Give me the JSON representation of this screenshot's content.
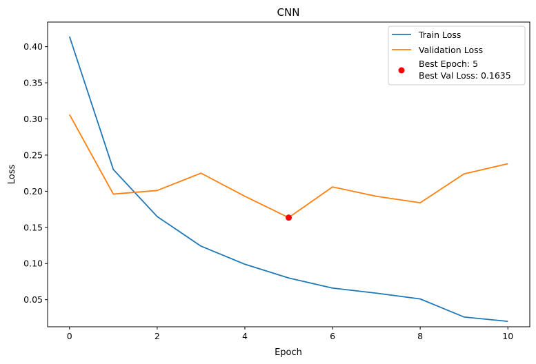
{
  "chart_data": {
    "type": "line",
    "title": "CNN",
    "xlabel": "Epoch",
    "ylabel": "Loss",
    "xlim": [
      -0.5,
      10.5
    ],
    "ylim": [
      0.0125,
      0.434
    ],
    "xticks": [
      0,
      2,
      4,
      6,
      8,
      10
    ],
    "yticks": [
      0.05,
      0.1,
      0.15,
      0.2,
      0.25,
      0.3,
      0.35,
      0.4
    ],
    "ytick_labels": [
      "0.05",
      "0.10",
      "0.15",
      "0.20",
      "0.25",
      "0.30",
      "0.35",
      "0.40"
    ],
    "xtick_labels": [
      "0",
      "2",
      "4",
      "6",
      "8",
      "10"
    ],
    "grid": false,
    "legend_position": "top-right",
    "x": [
      0,
      1,
      2,
      3,
      4,
      5,
      6,
      7,
      8,
      9,
      10
    ],
    "series": [
      {
        "name": "Train Loss",
        "color": "#1f77b4",
        "values": [
          0.414,
          0.23,
          0.165,
          0.124,
          0.099,
          0.08,
          0.066,
          0.059,
          0.051,
          0.026,
          0.02
        ]
      },
      {
        "name": "Validation Loss",
        "color": "#ff7f0e",
        "values": [
          0.306,
          0.196,
          0.201,
          0.225,
          0.193,
          0.1635,
          0.206,
          0.193,
          0.184,
          0.224,
          0.238
        ]
      }
    ],
    "best_point": {
      "x": 5,
      "y": 0.1635,
      "color": "#ff0000",
      "label_line1": "Best Epoch: 5",
      "label_line2": "Best Val Loss: 0.1635"
    }
  }
}
